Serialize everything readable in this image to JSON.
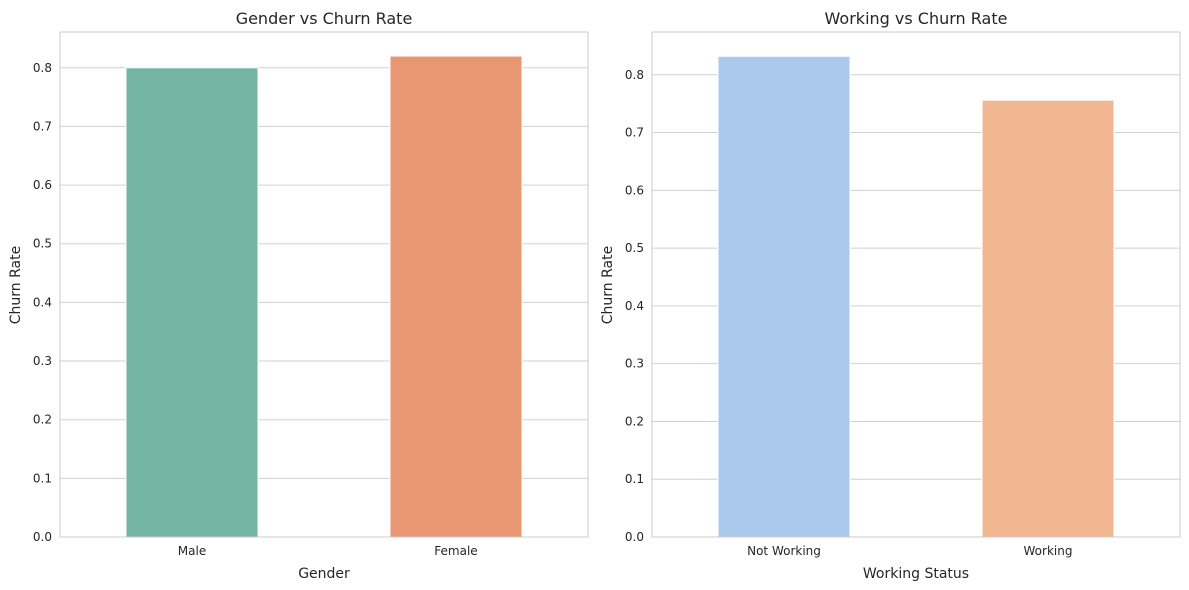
{
  "chart_data": [
    {
      "type": "bar",
      "title": "Gender vs Churn Rate",
      "xlabel": "Gender",
      "ylabel": "Churn Rate",
      "categories": [
        "Male",
        "Female"
      ],
      "values": [
        0.8,
        0.82
      ],
      "colors": [
        "#73b5a0",
        "#e99673"
      ],
      "ylim": [
        0,
        0.861
      ],
      "yticks": [
        "0.0",
        "0.1",
        "0.2",
        "0.3",
        "0.4",
        "0.5",
        "0.6",
        "0.7",
        "0.8"
      ],
      "grid": true
    },
    {
      "type": "bar",
      "title": "Working vs Churn Rate",
      "xlabel": "Working Status",
      "ylabel": "Churn Rate",
      "categories": [
        "Not Working",
        "Working"
      ],
      "values": [
        0.832,
        0.756
      ],
      "colors": [
        "#abc9ed",
        "#f0b790"
      ],
      "ylim": [
        0,
        0.874
      ],
      "yticks": [
        "0.0",
        "0.1",
        "0.2",
        "0.3",
        "0.4",
        "0.5",
        "0.6",
        "0.7",
        "0.8"
      ],
      "grid": true
    }
  ]
}
